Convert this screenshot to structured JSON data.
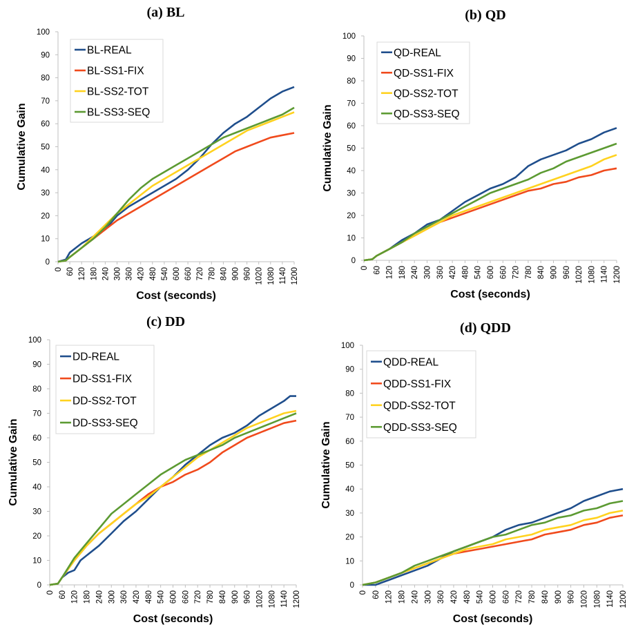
{
  "colors": {
    "real": "#1f4e8c",
    "ss1": "#f04a1c",
    "ss2": "#ffd21f",
    "ss3": "#5c9a32"
  },
  "chart_data": [
    {
      "type": "line",
      "title": "(a) BL",
      "xlabel": "Cost (seconds)",
      "ylabel": "Cumulative Gain",
      "xlim": [
        0,
        1200
      ],
      "ylim": [
        0,
        100
      ],
      "yticks": [
        "0",
        "10",
        "20",
        "30",
        "40",
        "50",
        "60",
        "70",
        "80",
        "90",
        "100"
      ],
      "xticks": [
        "0",
        "60",
        "120",
        "180",
        "240",
        "300",
        "360",
        "420",
        "480",
        "540",
        "600",
        "660",
        "720",
        "780",
        "840",
        "900",
        "960",
        "1020",
        "1080",
        "1140",
        "1200"
      ],
      "legend_position": "top-left",
      "grid": false,
      "series": [
        {
          "name": "BL-REAL",
          "color": "#1f4e8c",
          "x": [
            0,
            40,
            60,
            90,
            120,
            180,
            240,
            300,
            360,
            420,
            480,
            540,
            600,
            660,
            720,
            780,
            840,
            900,
            960,
            1020,
            1080,
            1140,
            1200
          ],
          "y": [
            0,
            1,
            4,
            6,
            8,
            11,
            14,
            20,
            24,
            27,
            30,
            33,
            36,
            40,
            45,
            51,
            56,
            60,
            63,
            67,
            71,
            74,
            76
          ]
        },
        {
          "name": "BL-SS1-FIX",
          "color": "#f04a1c",
          "x": [
            0,
            40,
            60,
            120,
            180,
            240,
            300,
            360,
            420,
            480,
            540,
            600,
            660,
            720,
            780,
            840,
            900,
            960,
            1020,
            1080,
            1140,
            1200
          ],
          "y": [
            0,
            0.5,
            2,
            6,
            10,
            14,
            18,
            21,
            24,
            27,
            30,
            33,
            36,
            39,
            42,
            45,
            48,
            50,
            52,
            54,
            55,
            56
          ]
        },
        {
          "name": "BL-SS2-TOT",
          "color": "#ffd21f",
          "x": [
            0,
            40,
            60,
            120,
            180,
            240,
            300,
            360,
            420,
            480,
            540,
            600,
            660,
            720,
            780,
            840,
            900,
            960,
            1020,
            1080,
            1140,
            1200
          ],
          "y": [
            0,
            0.5,
            2,
            6,
            11,
            16,
            21,
            25,
            29,
            33,
            36,
            39,
            42,
            45,
            48,
            51,
            54,
            57,
            59,
            61,
            63,
            65
          ]
        },
        {
          "name": "BL-SS3-SEQ",
          "color": "#5c9a32",
          "x": [
            0,
            40,
            60,
            120,
            180,
            240,
            300,
            360,
            420,
            480,
            540,
            600,
            660,
            720,
            780,
            840,
            900,
            960,
            1020,
            1080,
            1140,
            1200
          ],
          "y": [
            0,
            0.5,
            2,
            6,
            10,
            15,
            21,
            27,
            32,
            36,
            39,
            42,
            45,
            48,
            51,
            54,
            56,
            58,
            60,
            62,
            64,
            67
          ]
        }
      ]
    },
    {
      "type": "line",
      "title": "(b) QD",
      "xlabel": "Cost (seconds)",
      "ylabel": "Cumulative Gain",
      "xlim": [
        0,
        1200
      ],
      "ylim": [
        0,
        100
      ],
      "yticks": [
        "0",
        "10",
        "20",
        "30",
        "40",
        "50",
        "60",
        "70",
        "80",
        "90",
        "100"
      ],
      "xticks": [
        "0",
        "60",
        "120",
        "180",
        "240",
        "300",
        "360",
        "420",
        "480",
        "540",
        "600",
        "660",
        "720",
        "780",
        "840",
        "900",
        "960",
        "1020",
        "1080",
        "1140",
        "1200"
      ],
      "legend_position": "top-left",
      "grid": false,
      "series": [
        {
          "name": "QD-REAL",
          "color": "#1f4e8c",
          "x": [
            0,
            40,
            60,
            120,
            180,
            240,
            300,
            360,
            420,
            480,
            540,
            600,
            660,
            720,
            780,
            840,
            900,
            960,
            1020,
            1080,
            1140,
            1200
          ],
          "y": [
            0,
            0.5,
            2,
            5,
            9,
            12,
            16,
            18,
            22,
            26,
            29,
            32,
            34,
            37,
            42,
            45,
            47,
            49,
            52,
            54,
            57,
            59
          ]
        },
        {
          "name": "QD-SS1-FIX",
          "color": "#f04a1c",
          "x": [
            0,
            40,
            60,
            120,
            180,
            240,
            300,
            360,
            420,
            480,
            540,
            600,
            660,
            720,
            780,
            840,
            900,
            960,
            1020,
            1080,
            1140,
            1200
          ],
          "y": [
            0,
            0.5,
            2,
            5,
            8,
            11,
            14,
            17,
            19,
            21,
            23,
            25,
            27,
            29,
            31,
            32,
            34,
            35,
            37,
            38,
            40,
            41
          ]
        },
        {
          "name": "QD-SS2-TOT",
          "color": "#ffd21f",
          "x": [
            0,
            40,
            60,
            120,
            180,
            240,
            300,
            360,
            420,
            480,
            540,
            600,
            660,
            720,
            780,
            840,
            900,
            960,
            1020,
            1080,
            1140,
            1200
          ],
          "y": [
            0,
            0.5,
            2,
            5,
            8,
            11,
            14,
            17,
            20,
            22,
            24,
            26,
            28,
            30,
            32,
            34,
            36,
            38,
            40,
            42,
            45,
            47
          ]
        },
        {
          "name": "QD-SS3-SEQ",
          "color": "#5c9a32",
          "x": [
            0,
            40,
            60,
            120,
            180,
            240,
            300,
            360,
            420,
            480,
            540,
            600,
            660,
            720,
            780,
            840,
            900,
            960,
            1020,
            1080,
            1140,
            1200
          ],
          "y": [
            0,
            0.5,
            2,
            5,
            8,
            12,
            15,
            18,
            21,
            24,
            27,
            30,
            32,
            34,
            36,
            39,
            41,
            44,
            46,
            48,
            50,
            52
          ]
        }
      ]
    },
    {
      "type": "line",
      "title": "(c) DD",
      "xlabel": "Cost (seconds)",
      "ylabel": "Cumulative Gain",
      "xlim": [
        0,
        1200
      ],
      "ylim": [
        0,
        100
      ],
      "yticks": [
        "0",
        "10",
        "20",
        "30",
        "40",
        "50",
        "60",
        "70",
        "80",
        "90",
        "100"
      ],
      "xticks": [
        "0",
        "60",
        "120",
        "180",
        "240",
        "300",
        "360",
        "420",
        "480",
        "540",
        "600",
        "660",
        "720",
        "780",
        "840",
        "900",
        "960",
        "1020",
        "1080",
        "1140",
        "1200"
      ],
      "legend_position": "top-left",
      "grid": false,
      "series": [
        {
          "name": "DD-REAL",
          "color": "#1f4e8c",
          "x": [
            0,
            40,
            60,
            90,
            120,
            150,
            180,
            240,
            300,
            360,
            420,
            480,
            540,
            600,
            660,
            720,
            780,
            840,
            900,
            960,
            1020,
            1080,
            1140,
            1170,
            1200
          ],
          "y": [
            0,
            0.5,
            3,
            5,
            6,
            10,
            12,
            16,
            21,
            26,
            30,
            35,
            40,
            44,
            49,
            53,
            57,
            60,
            62,
            65,
            69,
            72,
            75,
            77,
            77
          ]
        },
        {
          "name": "DD-SS1-FIX",
          "color": "#f04a1c",
          "x": [
            0,
            40,
            60,
            120,
            180,
            240,
            300,
            360,
            420,
            480,
            540,
            600,
            660,
            720,
            780,
            840,
            900,
            960,
            1020,
            1080,
            1140,
            1200
          ],
          "y": [
            0,
            0.5,
            3,
            10,
            16,
            21,
            25,
            29,
            33,
            37,
            40,
            42,
            45,
            47,
            50,
            54,
            57,
            60,
            62,
            64,
            66,
            67
          ]
        },
        {
          "name": "DD-SS2-TOT",
          "color": "#ffd21f",
          "x": [
            0,
            40,
            60,
            120,
            180,
            240,
            300,
            360,
            420,
            480,
            540,
            600,
            660,
            720,
            780,
            840,
            900,
            960,
            1020,
            1080,
            1140,
            1200
          ],
          "y": [
            0,
            0.5,
            3,
            10,
            16,
            21,
            25,
            29,
            33,
            36,
            40,
            44,
            48,
            52,
            55,
            58,
            61,
            64,
            66,
            68,
            70,
            71
          ]
        },
        {
          "name": "DD-SS3-SEQ",
          "color": "#5c9a32",
          "x": [
            0,
            40,
            60,
            120,
            180,
            240,
            300,
            360,
            420,
            480,
            540,
            600,
            660,
            720,
            780,
            840,
            900,
            960,
            1020,
            1080,
            1140,
            1200
          ],
          "y": [
            0,
            0.5,
            3,
            11,
            17,
            23,
            29,
            33,
            37,
            41,
            45,
            48,
            51,
            53,
            55,
            57,
            60,
            62,
            64,
            66,
            68,
            70
          ]
        }
      ]
    },
    {
      "type": "line",
      "title": "(d) QDD",
      "xlabel": "Cost (seconds)",
      "ylabel": "Cumulative Gain",
      "xlim": [
        0,
        1200
      ],
      "ylim": [
        0,
        100
      ],
      "yticks": [
        "0",
        "10",
        "20",
        "30",
        "40",
        "50",
        "60",
        "70",
        "80",
        "90",
        "100"
      ],
      "xticks": [
        "0",
        "60",
        "120",
        "180",
        "240",
        "300",
        "360",
        "420",
        "480",
        "540",
        "600",
        "660",
        "720",
        "780",
        "840",
        "900",
        "960",
        "1020",
        "1080",
        "1140",
        "1200"
      ],
      "legend_position": "top-left",
      "grid": false,
      "series": [
        {
          "name": "QDD-REAL",
          "color": "#1f4e8c",
          "x": [
            0,
            60,
            90,
            120,
            180,
            240,
            300,
            360,
            420,
            480,
            540,
            600,
            660,
            720,
            780,
            840,
            900,
            960,
            1020,
            1080,
            1140,
            1200
          ],
          "y": [
            0,
            0,
            1,
            2,
            4,
            6,
            8,
            11,
            14,
            16,
            18,
            20,
            23,
            25,
            26,
            28,
            30,
            32,
            35,
            37,
            39,
            40
          ]
        },
        {
          "name": "QDD-SS1-FIX",
          "color": "#f04a1c",
          "x": [
            0,
            60,
            120,
            180,
            240,
            300,
            360,
            420,
            480,
            540,
            600,
            660,
            720,
            780,
            840,
            900,
            960,
            1020,
            1080,
            1140,
            1200
          ],
          "y": [
            0,
            1,
            3,
            5,
            7,
            9,
            11,
            13,
            14,
            15,
            16,
            17,
            18,
            19,
            21,
            22,
            23,
            25,
            26,
            28,
            29
          ]
        },
        {
          "name": "QDD-SS2-TOT",
          "color": "#ffd21f",
          "x": [
            0,
            60,
            120,
            180,
            240,
            300,
            360,
            420,
            480,
            540,
            600,
            660,
            720,
            780,
            840,
            900,
            960,
            1020,
            1080,
            1140,
            1200
          ],
          "y": [
            0,
            1,
            3,
            5,
            7,
            9,
            11,
            13,
            15,
            16,
            17,
            19,
            20,
            21,
            23,
            24,
            25,
            27,
            28,
            30,
            31
          ]
        },
        {
          "name": "QDD-SS3-SEQ",
          "color": "#5c9a32",
          "x": [
            0,
            60,
            120,
            180,
            240,
            300,
            360,
            420,
            480,
            540,
            600,
            660,
            720,
            780,
            840,
            900,
            960,
            1020,
            1080,
            1140,
            1200
          ],
          "y": [
            0,
            1,
            3,
            5,
            8,
            10,
            12,
            14,
            16,
            18,
            20,
            21,
            23,
            25,
            26,
            28,
            29,
            31,
            32,
            34,
            35
          ]
        }
      ]
    }
  ]
}
